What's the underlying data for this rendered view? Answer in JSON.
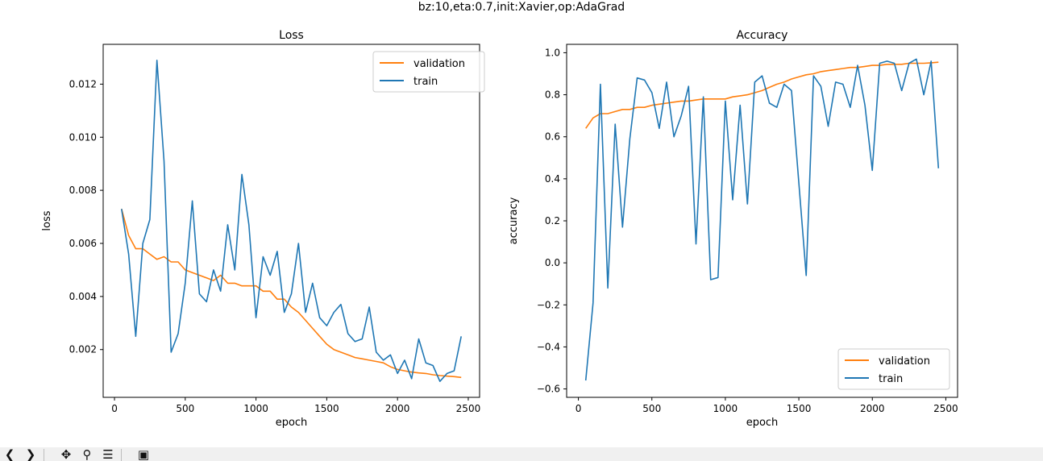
{
  "figure": {
    "suptitle": "bz:10,eta:0.7,init:Xavier,op:AdaGrad"
  },
  "colors": {
    "validation": "#ff7f0e",
    "train": "#1f77b4"
  },
  "toolbar": {
    "buttons": [
      {
        "name": "back-button",
        "icon": "arrow-left-icon",
        "glyph": "❮"
      },
      {
        "name": "forward-button",
        "icon": "arrow-right-icon",
        "glyph": "❯"
      },
      {
        "name": "pan-button",
        "icon": "move-icon",
        "glyph": "✥"
      },
      {
        "name": "zoom-button",
        "icon": "zoom-icon",
        "glyph": "⚲"
      },
      {
        "name": "configure-subplots-button",
        "icon": "sliders-icon",
        "glyph": "☰"
      },
      {
        "name": "save-button",
        "icon": "save-icon",
        "glyph": "▣"
      }
    ]
  },
  "chart_data": [
    {
      "type": "line",
      "title": "Loss",
      "xlabel": "epoch",
      "ylabel": "loss",
      "xlim": [
        -80,
        2580
      ],
      "ylim": [
        0.0002,
        0.0135
      ],
      "xticks": [
        0,
        500,
        1000,
        1500,
        2000,
        2500
      ],
      "xtick_labels": [
        "0",
        "500",
        "1000",
        "1500",
        "2000",
        "2500"
      ],
      "yticks": [
        0.002,
        0.004,
        0.006,
        0.008,
        0.01,
        0.012
      ],
      "ytick_labels": [
        "0.002",
        "0.004",
        "0.006",
        "0.008",
        "0.010",
        "0.012"
      ],
      "legend_position": "upper-right",
      "grid": false,
      "series": [
        {
          "name": "validation",
          "color_key": "validation",
          "x": [
            50,
            100,
            150,
            200,
            250,
            300,
            350,
            400,
            450,
            500,
            550,
            600,
            650,
            700,
            750,
            800,
            850,
            900,
            950,
            1000,
            1050,
            1100,
            1150,
            1200,
            1250,
            1300,
            1350,
            1400,
            1450,
            1500,
            1550,
            1600,
            1650,
            1700,
            1750,
            1800,
            1850,
            1900,
            1950,
            2000,
            2050,
            2100,
            2150,
            2200,
            2250,
            2300,
            2350,
            2400,
            2450
          ],
          "y": [
            0.0073,
            0.0063,
            0.0058,
            0.0058,
            0.0056,
            0.0054,
            0.0055,
            0.0053,
            0.0053,
            0.005,
            0.0049,
            0.0048,
            0.0047,
            0.0046,
            0.0048,
            0.0045,
            0.0045,
            0.0044,
            0.0044,
            0.0044,
            0.0042,
            0.0042,
            0.0039,
            0.0039,
            0.0036,
            0.0034,
            0.0031,
            0.0028,
            0.0025,
            0.0022,
            0.002,
            0.0019,
            0.0018,
            0.0017,
            0.00165,
            0.0016,
            0.00155,
            0.0015,
            0.00135,
            0.00125,
            0.0012,
            0.00115,
            0.00112,
            0.0011,
            0.00105,
            0.00102,
            0.001,
            0.00098,
            0.00095
          ]
        },
        {
          "name": "train",
          "color_key": "train",
          "x": [
            50,
            100,
            150,
            200,
            250,
            300,
            350,
            400,
            450,
            500,
            550,
            600,
            650,
            700,
            750,
            800,
            850,
            900,
            950,
            1000,
            1050,
            1100,
            1150,
            1200,
            1250,
            1300,
            1350,
            1400,
            1450,
            1500,
            1550,
            1600,
            1650,
            1700,
            1750,
            1800,
            1850,
            1900,
            1950,
            2000,
            2050,
            2100,
            2150,
            2200,
            2250,
            2300,
            2350,
            2400,
            2450
          ],
          "y": [
            0.0073,
            0.0056,
            0.0025,
            0.006,
            0.0069,
            0.0129,
            0.0091,
            0.0019,
            0.0026,
            0.0045,
            0.0076,
            0.0041,
            0.0038,
            0.005,
            0.0042,
            0.0067,
            0.005,
            0.0086,
            0.0067,
            0.0032,
            0.0055,
            0.0048,
            0.0057,
            0.0034,
            0.0041,
            0.006,
            0.0034,
            0.0045,
            0.0032,
            0.0029,
            0.0034,
            0.0037,
            0.0026,
            0.0023,
            0.0024,
            0.0036,
            0.0019,
            0.0016,
            0.0018,
            0.0011,
            0.0016,
            0.0009,
            0.0024,
            0.0015,
            0.0014,
            0.0008,
            0.0011,
            0.0012,
            0.0025
          ]
        }
      ]
    },
    {
      "type": "line",
      "title": "Accuracy",
      "xlabel": "epoch",
      "ylabel": "accuracy",
      "xlim": [
        -80,
        2580
      ],
      "ylim": [
        -0.64,
        1.04
      ],
      "xticks": [
        0,
        500,
        1000,
        1500,
        2000,
        2500
      ],
      "xtick_labels": [
        "0",
        "500",
        "1000",
        "1500",
        "2000",
        "2500"
      ],
      "yticks": [
        -0.6,
        -0.4,
        -0.2,
        0.0,
        0.2,
        0.4,
        0.6,
        0.8,
        1.0
      ],
      "ytick_labels": [
        "−0.6",
        "−0.4",
        "−0.2",
        "0.0",
        "0.2",
        "0.4",
        "0.6",
        "0.8",
        "1.0"
      ],
      "legend_position": "lower-right",
      "grid": false,
      "series": [
        {
          "name": "validation",
          "color_key": "validation",
          "x": [
            50,
            100,
            150,
            200,
            250,
            300,
            350,
            400,
            450,
            500,
            550,
            600,
            650,
            700,
            750,
            800,
            850,
            900,
            950,
            1000,
            1050,
            1100,
            1150,
            1200,
            1250,
            1300,
            1350,
            1400,
            1450,
            1500,
            1550,
            1600,
            1650,
            1700,
            1750,
            1800,
            1850,
            1900,
            1950,
            2000,
            2050,
            2100,
            2150,
            2200,
            2250,
            2300,
            2350,
            2400,
            2450
          ],
          "y": [
            0.64,
            0.69,
            0.71,
            0.71,
            0.72,
            0.73,
            0.73,
            0.74,
            0.74,
            0.75,
            0.755,
            0.76,
            0.765,
            0.77,
            0.77,
            0.775,
            0.78,
            0.78,
            0.78,
            0.78,
            0.79,
            0.795,
            0.8,
            0.81,
            0.82,
            0.835,
            0.85,
            0.86,
            0.875,
            0.885,
            0.895,
            0.9,
            0.91,
            0.915,
            0.92,
            0.925,
            0.93,
            0.93,
            0.935,
            0.94,
            0.94,
            0.945,
            0.945,
            0.945,
            0.95,
            0.95,
            0.95,
            0.952,
            0.955
          ]
        },
        {
          "name": "train",
          "color_key": "train",
          "x": [
            50,
            100,
            150,
            200,
            250,
            300,
            350,
            400,
            450,
            500,
            550,
            600,
            650,
            700,
            750,
            800,
            850,
            900,
            950,
            1000,
            1050,
            1100,
            1150,
            1200,
            1250,
            1300,
            1350,
            1400,
            1450,
            1500,
            1550,
            1600,
            1650,
            1700,
            1750,
            1800,
            1850,
            1900,
            1950,
            2000,
            2050,
            2100,
            2150,
            2200,
            2250,
            2300,
            2350,
            2400,
            2450
          ],
          "y": [
            -0.56,
            -0.19,
            0.85,
            -0.12,
            0.66,
            0.17,
            0.59,
            0.88,
            0.87,
            0.81,
            0.64,
            0.86,
            0.6,
            0.7,
            0.84,
            0.09,
            0.79,
            -0.08,
            -0.07,
            0.77,
            0.3,
            0.75,
            0.28,
            0.86,
            0.89,
            0.76,
            0.74,
            0.85,
            0.82,
            0.38,
            -0.06,
            0.89,
            0.84,
            0.65,
            0.86,
            0.85,
            0.74,
            0.94,
            0.75,
            0.44,
            0.95,
            0.96,
            0.95,
            0.82,
            0.95,
            0.97,
            0.8,
            0.96,
            0.45
          ]
        }
      ]
    }
  ]
}
